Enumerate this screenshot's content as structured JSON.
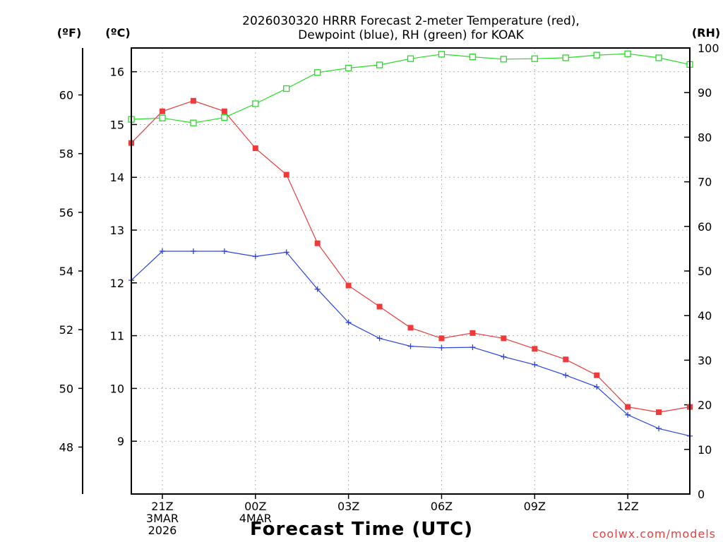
{
  "chart_data": {
    "type": "line",
    "title_line1": "2026030320 HRRR Forecast 2-meter Temperature (red),",
    "title_line2": "Dewpoint (blue), RH (green) for KOAK",
    "xlabel": "Forecast Time (UTC)",
    "credit": "coolwx.com/models",
    "units": {
      "fahrenheit": "(ºF)",
      "celsius": "(ºC)",
      "rh": "(RH)"
    },
    "x_hours": [
      20,
      21,
      22,
      23,
      24,
      25,
      26,
      27,
      28,
      29,
      30,
      31,
      32,
      33,
      34,
      35,
      36,
      37,
      38
    ],
    "xlim": [
      20,
      38
    ],
    "x_ticks": [
      {
        "hour": 21,
        "lines": [
          "21Z",
          "3MAR",
          "2026"
        ]
      },
      {
        "hour": 24,
        "lines": [
          "00Z",
          "4MAR"
        ]
      },
      {
        "hour": 27,
        "lines": [
          "03Z"
        ]
      },
      {
        "hour": 30,
        "lines": [
          "06Z"
        ]
      },
      {
        "hour": 33,
        "lines": [
          "09Z"
        ]
      },
      {
        "hour": 36,
        "lines": [
          "12Z"
        ]
      }
    ],
    "celsius_axis": {
      "ylim": [
        8.0,
        16.45
      ],
      "ticks": [
        9,
        10,
        11,
        12,
        13,
        14,
        15,
        16
      ]
    },
    "fahrenheit_axis": {
      "ylim": [
        46.4,
        61.6
      ],
      "ticks": [
        48,
        50,
        52,
        54,
        56,
        58,
        60
      ]
    },
    "rh_axis": {
      "ylim": [
        0,
        100
      ],
      "ticks": [
        0,
        10,
        20,
        30,
        40,
        50,
        60,
        70,
        80,
        90,
        100
      ]
    },
    "series": [
      {
        "name": "Temperature",
        "axis": "celsius",
        "color": "#ee3a3a",
        "marker": "filled-square",
        "values": [
          14.65,
          15.25,
          15.45,
          15.25,
          14.55,
          14.05,
          12.75,
          11.95,
          11.55,
          11.15,
          10.95,
          11.05,
          10.95,
          10.75,
          10.55,
          10.25,
          9.65,
          9.55,
          9.65
        ]
      },
      {
        "name": "Dewpoint",
        "axis": "celsius",
        "color": "#2a44e8",
        "marker": "plus",
        "values": [
          12.05,
          12.6,
          12.6,
          12.6,
          12.5,
          12.58,
          11.88,
          11.25,
          10.95,
          10.8,
          10.77,
          10.78,
          10.6,
          10.45,
          10.25,
          10.03,
          9.5,
          9.24,
          9.1
        ]
      },
      {
        "name": "RH",
        "axis": "rh",
        "color": "#22dd22",
        "marker": "open-square",
        "values": [
          84,
          84.3,
          83.2,
          84.4,
          87.5,
          90.9,
          94.5,
          95.5,
          96.2,
          97.6,
          98.6,
          98,
          97.5,
          97.6,
          97.8,
          98.4,
          98.7,
          97.8,
          96.3
        ]
      }
    ]
  }
}
